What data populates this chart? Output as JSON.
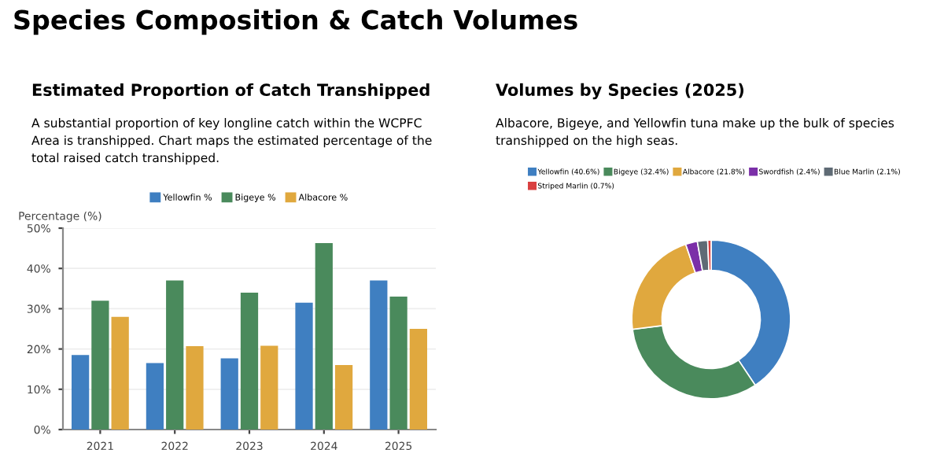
{
  "chart_data": [
    {
      "type": "bar",
      "title": "Estimated Proportion of Catch Transhipped",
      "subtitle": "A substantial proportion of key longline catch within the WCPFC Area is transhipped. Chart maps the estimated percentage of the total raised catch transhipped.",
      "annotations": [
        "Species Composition & Catch Volumes"
      ],
      "ylabel": "Percentage (%)",
      "categories": [
        "2021",
        "2022",
        "2023",
        "2024",
        "2025"
      ],
      "series": [
        {
          "name": "Yellowfin %",
          "color": "#3f7fc1",
          "values": [
            18.5,
            16.5,
            17.7,
            31.5,
            37
          ]
        },
        {
          "name": "Bigeye %",
          "color": "#4a8a5c",
          "values": [
            32,
            37,
            34,
            46.3,
            33
          ]
        },
        {
          "name": "Albacore %",
          "color": "#e0a83e",
          "values": [
            28,
            20.7,
            20.8,
            16,
            25
          ]
        }
      ],
      "ylim": [
        0,
        50
      ],
      "yticks": [
        {
          "value": 0,
          "label": "0%"
        },
        {
          "value": 10,
          "label": "10%"
        },
        {
          "value": 20,
          "label": "20%"
        },
        {
          "value": 30,
          "label": "30%"
        },
        {
          "value": 40,
          "label": "40%"
        },
        {
          "value": 50,
          "label": "50%"
        }
      ],
      "grid": "y",
      "legend": "top"
    },
    {
      "type": "donut",
      "title": "Volumes by Species (2025)",
      "subtitle": "Albacore, Bigeye, and Yellowfin tuna make up the bulk of species transhipped on the high seas.",
      "categories": [
        "Yellowfin (40.6%)",
        "Bigeye (32.4%)",
        "Albacore (21.8%)",
        "Swordfish (2.4%)",
        "Blue Marlin (2.1%)",
        "Striped Marlin (0.7%)"
      ],
      "values": [
        40.6,
        32.4,
        21.8,
        2.4,
        2.1,
        0.7
      ],
      "colors": [
        "#3f7fc1",
        "#4a8a5c",
        "#e0a83e",
        "#7b2fa8",
        "#5f6b75",
        "#d94040"
      ],
      "legend": "top"
    }
  ]
}
